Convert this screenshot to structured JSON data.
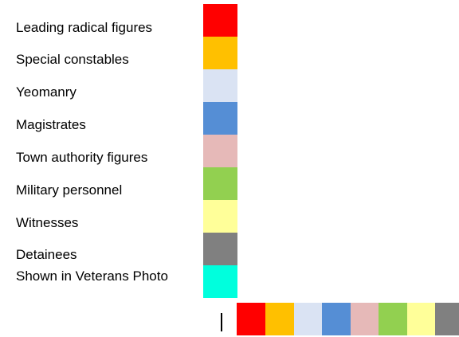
{
  "legend": {
    "items": [
      {
        "label": "Leading radical figures",
        "color": "#FF0000"
      },
      {
        "label": "Special constables",
        "color": "#FFC000"
      },
      {
        "label": "Yeomanry",
        "color": "#DAE3F3"
      },
      {
        "label": "Magistrates",
        "color": "#558ED5"
      },
      {
        "label": "Town authority figures",
        "color": "#E6B9B8"
      },
      {
        "label": "Military personnel",
        "color": "#92D050"
      },
      {
        "label": "Witnesses",
        "color": "#FFFF99"
      },
      {
        "label": "Detainees",
        "color": "#808080"
      },
      {
        "label": "Shown in Veterans Photo",
        "color": "#00FFDD"
      }
    ]
  },
  "bottom_strip": {
    "colors": [
      "#FF0000",
      "#FFC000",
      "#DAE3F3",
      "#558ED5",
      "#E6B9B8",
      "#92D050",
      "#FFFF99",
      "#808080"
    ]
  }
}
